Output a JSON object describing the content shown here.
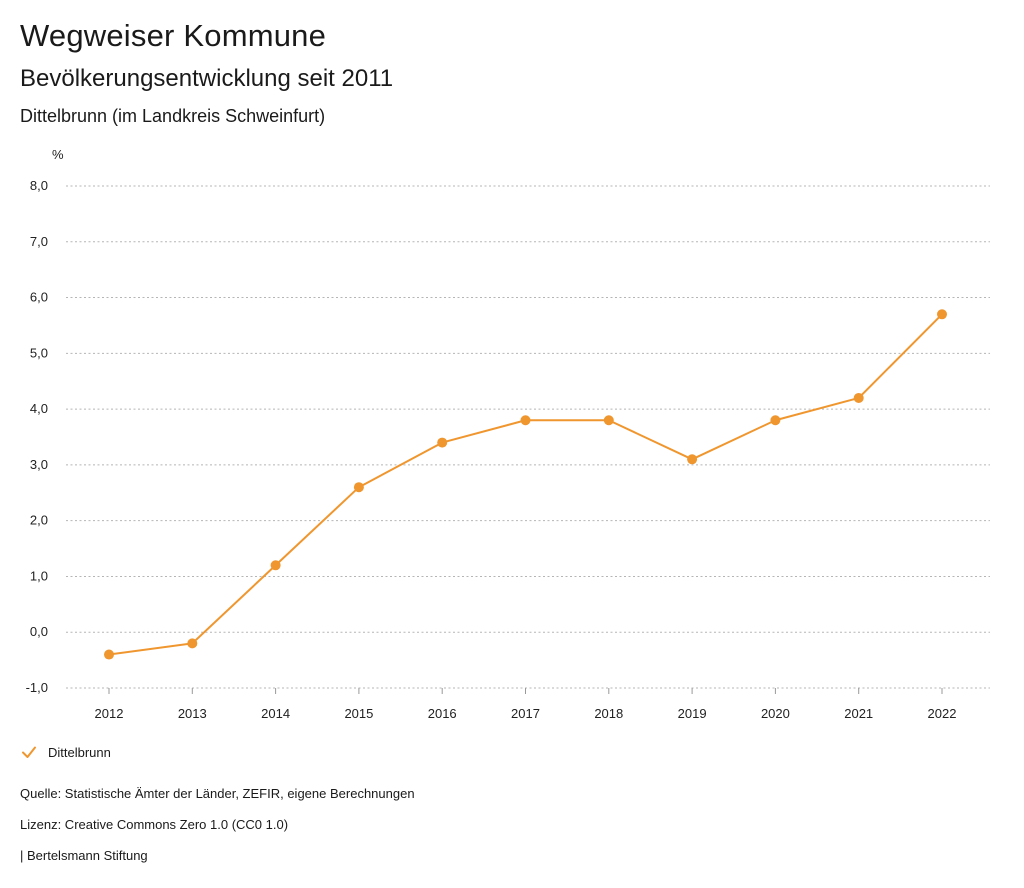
{
  "header": {
    "title": "Wegweiser Kommune",
    "subtitle": "Bevölkerungsentwicklung seit 2011",
    "region": "Dittelbrunn (im Landkreis Schweinfurt)"
  },
  "chart_data": {
    "type": "line",
    "x": [
      "2012",
      "2013",
      "2014",
      "2015",
      "2016",
      "2017",
      "2018",
      "2019",
      "2020",
      "2021",
      "2022"
    ],
    "series": [
      {
        "name": "Dittelbrunn",
        "color": "#f0962e",
        "values": [
          -0.4,
          -0.2,
          1.2,
          2.6,
          3.4,
          3.8,
          3.8,
          3.1,
          3.8,
          4.2,
          5.7
        ]
      }
    ],
    "yunit": "%",
    "ylim": [
      -1.0,
      8.0
    ],
    "yticks": [
      -1.0,
      0.0,
      1.0,
      2.0,
      3.0,
      4.0,
      5.0,
      6.0,
      7.0,
      8.0
    ],
    "ytick_labels": [
      "-1,0",
      "0,0",
      "1,0",
      "2,0",
      "3,0",
      "4,0",
      "5,0",
      "6,0",
      "7,0",
      "8,0"
    ],
    "grid": true,
    "legend_position": "bottom-left"
  },
  "legend": {
    "label": "Dittelbrunn",
    "icon": "check-icon"
  },
  "footer": {
    "source": "Quelle: Statistische Ämter der Länder, ZEFIR, eigene Berechnungen",
    "license": "Lizenz: Creative Commons Zero 1.0 (CC0 1.0)",
    "publisher": "| Bertelsmann Stiftung"
  }
}
